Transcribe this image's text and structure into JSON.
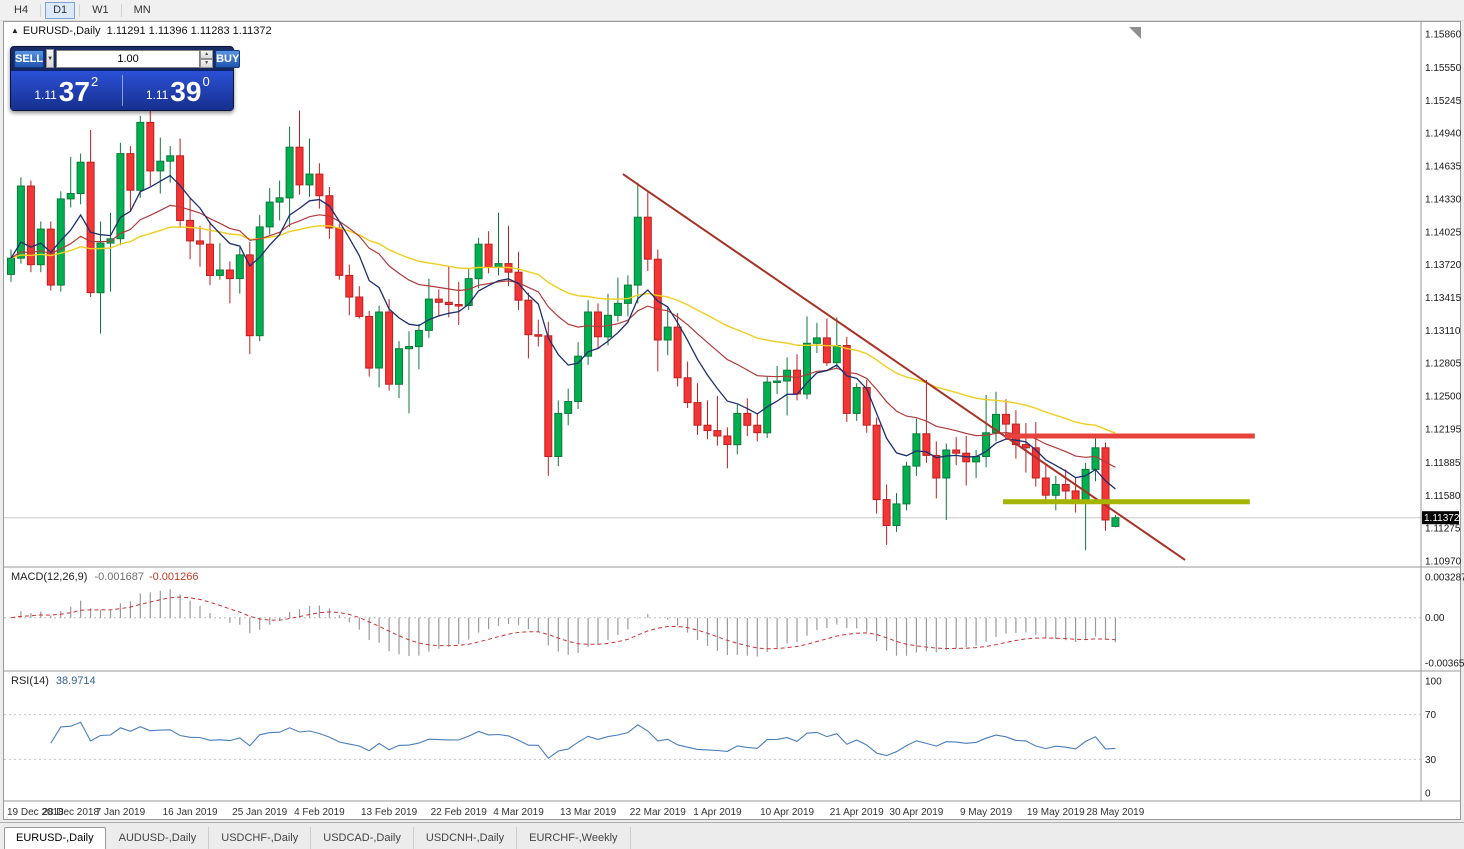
{
  "toolbar": {
    "timeframes": [
      {
        "label": "H4",
        "active": false
      },
      {
        "label": "D1",
        "active": true
      },
      {
        "label": "W1",
        "active": false
      },
      {
        "label": "MN",
        "active": false
      }
    ]
  },
  "icons": {
    "collapse_panel": "▲",
    "preset_caret": "▼",
    "spin_up": "▲",
    "spin_down": "▼"
  },
  "one_click": {
    "sell_label": "SELL",
    "buy_label": "BUY",
    "volume": "1.00",
    "sell_price_small": "1.11",
    "sell_price_big": "37",
    "sell_price_sup": "2",
    "buy_price_small": "1.11",
    "buy_price_big": "39",
    "buy_price_sup": "0"
  },
  "chart": {
    "header": {
      "symbol": "EURUSD-,Daily",
      "ohlc": "1.11291 1.11396 1.11283 1.11372"
    },
    "current_price": "1.11372",
    "price_axis_labels": [
      "1.15860",
      "1.15550",
      "1.15245",
      "1.14940",
      "1.14635",
      "1.14330",
      "1.14025",
      "1.13720",
      "1.13415",
      "1.13110",
      "1.12805",
      "1.12500",
      "1.12195",
      "1.11885",
      "1.11580",
      "1.11275",
      "1.10970"
    ],
    "colors": {
      "up": "#00b050",
      "up_border": "#0b7a3b",
      "down": "#f23535",
      "down_border": "#bf1f1f",
      "bid_line": "#c8c8c8",
      "tag_bg": "#000000",
      "tag_text": "#ffffff"
    },
    "moving_averages": [
      {
        "period": 45,
        "color": "#efce1e",
        "width": 1.4
      },
      {
        "period": 21,
        "color": "#b23a3a",
        "width": 1.2
      },
      {
        "period": 8,
        "color": "#1c2f6e",
        "width": 1.3
      }
    ],
    "objects": {
      "trendline": {
        "color": "#a93226",
        "width": 2,
        "i1": 61.5,
        "p1": 1.1456,
        "i2": 118,
        "p2": 1.1098
      },
      "resistance": {
        "color": "#e8423c",
        "width": 5,
        "i1": 99.9,
        "i2": 125,
        "price": 1.1213
      },
      "support": {
        "color": "#a4b400",
        "width": 5,
        "i1": 99.7,
        "i2": 124.5,
        "price": 1.1152
      }
    },
    "candles": [
      [
        1.1363,
        1.1386,
        1.1356,
        1.1378
      ],
      [
        1.1378,
        1.1453,
        1.1373,
        1.1445
      ],
      [
        1.1445,
        1.145,
        1.1365,
        1.1372
      ],
      [
        1.1372,
        1.1412,
        1.1365,
        1.1405
      ],
      [
        1.1405,
        1.1412,
        1.1348,
        1.1353
      ],
      [
        1.1353,
        1.144,
        1.1347,
        1.1433
      ],
      [
        1.1433,
        1.1472,
        1.1425,
        1.1438
      ],
      [
        1.1438,
        1.1475,
        1.1428,
        1.1467
      ],
      [
        1.1467,
        1.1497,
        1.1342,
        1.1346
      ],
      [
        1.1346,
        1.1412,
        1.1308,
        1.1392
      ],
      [
        1.1392,
        1.142,
        1.1347,
        1.1396
      ],
      [
        1.1396,
        1.1485,
        1.139,
        1.1475
      ],
      [
        1.1475,
        1.1482,
        1.1422,
        1.1441
      ],
      [
        1.1441,
        1.151,
        1.1434,
        1.1504
      ],
      [
        1.1504,
        1.1525,
        1.1445,
        1.1459
      ],
      [
        1.1459,
        1.149,
        1.1438,
        1.1468
      ],
      [
        1.1468,
        1.1482,
        1.1448,
        1.1473
      ],
      [
        1.1473,
        1.1489,
        1.1406,
        1.1413
      ],
      [
        1.1413,
        1.1434,
        1.1377,
        1.1394
      ],
      [
        1.1394,
        1.1408,
        1.137,
        1.1391
      ],
      [
        1.1391,
        1.1412,
        1.1353,
        1.1362
      ],
      [
        1.1362,
        1.1392,
        1.1358,
        1.1367
      ],
      [
        1.1367,
        1.1375,
        1.1336,
        1.1359
      ],
      [
        1.1359,
        1.1388,
        1.1345,
        1.1381
      ],
      [
        1.1381,
        1.1393,
        1.1289,
        1.1306
      ],
      [
        1.1306,
        1.1418,
        1.1301,
        1.1407
      ],
      [
        1.1407,
        1.1443,
        1.14,
        1.143
      ],
      [
        1.143,
        1.145,
        1.1413,
        1.1434
      ],
      [
        1.1434,
        1.15,
        1.1407,
        1.1481
      ],
      [
        1.1481,
        1.1515,
        1.1437,
        1.1446
      ],
      [
        1.1446,
        1.1489,
        1.1435,
        1.1456
      ],
      [
        1.1456,
        1.1466,
        1.1424,
        1.1436
      ],
      [
        1.1436,
        1.1444,
        1.1396,
        1.1406
      ],
      [
        1.1406,
        1.141,
        1.1358,
        1.1362
      ],
      [
        1.1362,
        1.1372,
        1.1325,
        1.1342
      ],
      [
        1.1342,
        1.1352,
        1.1322,
        1.1324
      ],
      [
        1.1324,
        1.1329,
        1.1268,
        1.1276
      ],
      [
        1.1276,
        1.1334,
        1.1258,
        1.1328
      ],
      [
        1.1328,
        1.134,
        1.1255,
        1.1261
      ],
      [
        1.1261,
        1.1301,
        1.1248,
        1.1294
      ],
      [
        1.1294,
        1.131,
        1.1234,
        1.1296
      ],
      [
        1.1296,
        1.1317,
        1.1275,
        1.1311
      ],
      [
        1.1311,
        1.1359,
        1.1304,
        1.134
      ],
      [
        1.134,
        1.1349,
        1.1324,
        1.1337
      ],
      [
        1.1337,
        1.1371,
        1.1323,
        1.1335
      ],
      [
        1.1335,
        1.1356,
        1.1316,
        1.1334
      ],
      [
        1.1334,
        1.1368,
        1.133,
        1.1359
      ],
      [
        1.1359,
        1.1397,
        1.135,
        1.1391
      ],
      [
        1.1391,
        1.1403,
        1.1364,
        1.137
      ],
      [
        1.137,
        1.142,
        1.1362,
        1.1373
      ],
      [
        1.1373,
        1.1408,
        1.1352,
        1.1365
      ],
      [
        1.1365,
        1.1384,
        1.133,
        1.1339
      ],
      [
        1.1339,
        1.1346,
        1.1285,
        1.1307
      ],
      [
        1.1307,
        1.1321,
        1.1296,
        1.1306
      ],
      [
        1.1306,
        1.1319,
        1.1176,
        1.1194
      ],
      [
        1.1194,
        1.1246,
        1.1185,
        1.1234
      ],
      [
        1.1234,
        1.1257,
        1.1223,
        1.1245
      ],
      [
        1.1245,
        1.13,
        1.1238,
        1.1287
      ],
      [
        1.1287,
        1.1339,
        1.1279,
        1.1328
      ],
      [
        1.1328,
        1.1336,
        1.1295,
        1.1305
      ],
      [
        1.1305,
        1.1345,
        1.1297,
        1.1325
      ],
      [
        1.1325,
        1.136,
        1.1319,
        1.1336
      ],
      [
        1.1336,
        1.1362,
        1.1324,
        1.1353
      ],
      [
        1.1353,
        1.1448,
        1.1336,
        1.1416
      ],
      [
        1.1416,
        1.1439,
        1.1366,
        1.1377
      ],
      [
        1.1377,
        1.1386,
        1.1273,
        1.1302
      ],
      [
        1.1302,
        1.1332,
        1.1288,
        1.1314
      ],
      [
        1.1314,
        1.1327,
        1.1259,
        1.1267
      ],
      [
        1.1267,
        1.1282,
        1.1239,
        1.1244
      ],
      [
        1.1244,
        1.1262,
        1.1214,
        1.1223
      ],
      [
        1.1223,
        1.1246,
        1.121,
        1.1218
      ],
      [
        1.1218,
        1.125,
        1.1204,
        1.1213
      ],
      [
        1.1213,
        1.1221,
        1.1183,
        1.1205
      ],
      [
        1.1205,
        1.1242,
        1.1196,
        1.1234
      ],
      [
        1.1234,
        1.1248,
        1.1213,
        1.1223
      ],
      [
        1.1223,
        1.1234,
        1.1208,
        1.1216
      ],
      [
        1.1216,
        1.1268,
        1.1211,
        1.1263
      ],
      [
        1.1263,
        1.1278,
        1.1252,
        1.1264
      ],
      [
        1.1264,
        1.1286,
        1.1232,
        1.1274
      ],
      [
        1.1274,
        1.1289,
        1.1246,
        1.1252
      ],
      [
        1.1252,
        1.1324,
        1.1247,
        1.1299
      ],
      [
        1.1299,
        1.1318,
        1.129,
        1.1304
      ],
      [
        1.1304,
        1.1322,
        1.1278,
        1.1281
      ],
      [
        1.1281,
        1.1323,
        1.1275,
        1.1297
      ],
      [
        1.1297,
        1.1305,
        1.1226,
        1.1234
      ],
      [
        1.1234,
        1.1262,
        1.1227,
        1.1258
      ],
      [
        1.1258,
        1.1265,
        1.1216,
        1.1223
      ],
      [
        1.1223,
        1.123,
        1.1141,
        1.1154
      ],
      [
        1.1154,
        1.1168,
        1.1112,
        1.113
      ],
      [
        1.113,
        1.116,
        1.1124,
        1.115
      ],
      [
        1.115,
        1.1189,
        1.1144,
        1.1185
      ],
      [
        1.1185,
        1.1229,
        1.1176,
        1.1215
      ],
      [
        1.1215,
        1.1265,
        1.1188,
        1.1195
      ],
      [
        1.1195,
        1.1208,
        1.1155,
        1.1174
      ],
      [
        1.1174,
        1.1206,
        1.1135,
        1.12
      ],
      [
        1.12,
        1.1212,
        1.1186,
        1.1197
      ],
      [
        1.1197,
        1.1213,
        1.1167,
        1.1189
      ],
      [
        1.1189,
        1.12,
        1.1174,
        1.1194
      ],
      [
        1.1194,
        1.1251,
        1.1184,
        1.1216
      ],
      [
        1.1216,
        1.1254,
        1.1208,
        1.1233
      ],
      [
        1.1233,
        1.1247,
        1.1215,
        1.1224
      ],
      [
        1.1224,
        1.1237,
        1.1192,
        1.1205
      ],
      [
        1.1205,
        1.1225,
        1.1179,
        1.1202
      ],
      [
        1.1202,
        1.1226,
        1.1166,
        1.1174
      ],
      [
        1.1174,
        1.1187,
        1.115,
        1.1158
      ],
      [
        1.1158,
        1.1176,
        1.1144,
        1.1168
      ],
      [
        1.1168,
        1.1182,
        1.1151,
        1.1162
      ],
      [
        1.1162,
        1.1174,
        1.1142,
        1.1153
      ],
      [
        1.1153,
        1.1188,
        1.1107,
        1.1182
      ],
      [
        1.1182,
        1.1213,
        1.1171,
        1.1202
      ],
      [
        1.1202,
        1.1207,
        1.1125,
        1.1135
      ],
      [
        1.11291,
        1.11396,
        1.11283,
        1.11372
      ]
    ],
    "date_axis": [
      {
        "i": 0,
        "label": "19 Dec 2018"
      },
      {
        "i": 6,
        "label": "28 Dec 2018"
      },
      {
        "i": 11,
        "label": "7 Jan 2019"
      },
      {
        "i": 18,
        "label": "16 Jan 2019"
      },
      {
        "i": 25,
        "label": "25 Jan 2019"
      },
      {
        "i": 31,
        "label": "4 Feb 2019"
      },
      {
        "i": 38,
        "label": "13 Feb 2019"
      },
      {
        "i": 45,
        "label": "22 Feb 2019"
      },
      {
        "i": 51,
        "label": "4 Mar 2019"
      },
      {
        "i": 58,
        "label": "13 Mar 2019"
      },
      {
        "i": 65,
        "label": "22 Mar 2019"
      },
      {
        "i": 71,
        "label": "1 Apr 2019"
      },
      {
        "i": 78,
        "label": "10 Apr 2019"
      },
      {
        "i": 85,
        "label": "21 Apr 2019"
      },
      {
        "i": 91,
        "label": "30 Apr 2019"
      },
      {
        "i": 98,
        "label": "9 May 2019"
      },
      {
        "i": 105,
        "label": "19 May 2019"
      },
      {
        "i": 111,
        "label": "28 May 2019"
      }
    ]
  },
  "macd": {
    "label": "MACD(12,26,9)",
    "value": "-0.001687",
    "signal_value": "-0.001266",
    "fast": 12,
    "slow": 26,
    "signal": 9,
    "axis_labels": [
      "0.003287",
      "0.00",
      "-0.003655"
    ],
    "bar_color": "#9a9a9a",
    "signal_color": "#cc3333"
  },
  "rsi": {
    "label": "RSI(14)",
    "value": "38.9714",
    "period": 14,
    "axis_labels": [
      "100",
      "70",
      "30",
      "0"
    ],
    "levels": [
      70,
      30
    ],
    "line_color": "#4a7ebb"
  },
  "tabs": [
    {
      "label": "EURUSD-,Daily",
      "active": true
    },
    {
      "label": "AUDUSD-,Daily",
      "active": false
    },
    {
      "label": "USDCHF-,Daily",
      "active": false
    },
    {
      "label": "USDCAD-,Daily",
      "active": false
    },
    {
      "label": "USDCNH-,Daily",
      "active": false
    },
    {
      "label": "EURCHF-,Weekly",
      "active": false
    }
  ]
}
